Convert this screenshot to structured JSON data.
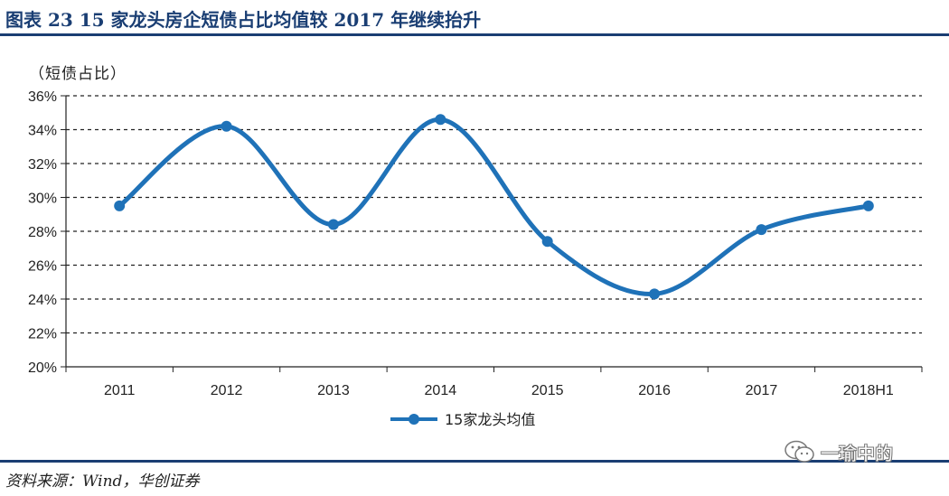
{
  "figure": {
    "title": "图表 23    15 家龙头房企短债占比均值较 2017 年继续抬升",
    "source": "资料来源：Wind，华创证券",
    "watermark": "一瑜中的",
    "colors": {
      "series": "#1f72b8",
      "rule": "#1a3e73",
      "grid": "#222222"
    }
  },
  "chart_data": {
    "type": "line",
    "title": "",
    "ylabel": "（短债占比）",
    "xlabel": "",
    "categories": [
      "2011",
      "2012",
      "2013",
      "2014",
      "2015",
      "2016",
      "2017",
      "2018H1"
    ],
    "series": [
      {
        "name": "15家龙头均值",
        "values": [
          29.5,
          34.2,
          28.4,
          34.6,
          27.4,
          24.3,
          28.1,
          29.5
        ],
        "color": "#1f72b8",
        "marker": "circle",
        "smooth": true
      }
    ],
    "ylim": [
      20,
      36
    ],
    "yticks": [
      "20%",
      "22%",
      "24%",
      "26%",
      "28%",
      "30%",
      "32%",
      "34%",
      "36%"
    ],
    "ytick_values": [
      20,
      22,
      24,
      26,
      28,
      30,
      32,
      34,
      36
    ],
    "grid": "horizontal-dashed",
    "legend": "bottom-center"
  }
}
